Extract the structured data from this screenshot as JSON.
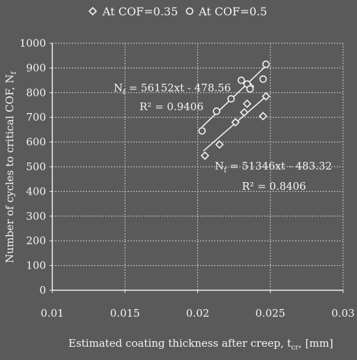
{
  "chart_data": {
    "type": "scatter",
    "xlabel": "Estimated coating thickness after creep, t",
    "xlabel_sub": "cr",
    "xlabel_unit": ", [mm]",
    "ylabel": "Number of cycles to critical COF, N",
    "ylabel_sub": "f",
    "xlim": [
      0.01,
      0.03
    ],
    "ylim": [
      0,
      1000
    ],
    "x_ticks": [
      "0.01",
      "0.015",
      "0.02",
      "0.025",
      "0.03"
    ],
    "y_ticks": [
      "0",
      "100",
      "200",
      "300",
      "400",
      "500",
      "600",
      "700",
      "800",
      "900",
      "1000"
    ],
    "grid": true,
    "legend_position": "top",
    "series": [
      {
        "name": "At COF=0.35",
        "marker": "diamond",
        "points": [
          [
            0.0205,
            545
          ],
          [
            0.0215,
            590
          ],
          [
            0.0226,
            680
          ],
          [
            0.0232,
            720
          ],
          [
            0.0234,
            755
          ],
          [
            0.0236,
            825
          ],
          [
            0.0245,
            705
          ],
          [
            0.0247,
            785
          ]
        ],
        "trendline": {
          "slope": 51346,
          "intercept": -483.32,
          "x_range": [
            0.0204,
            0.0248
          ]
        },
        "equation": "N = 51346xt - 483.32",
        "r2": "R² = 0.8406"
      },
      {
        "name": "At COF=0.5",
        "marker": "circle",
        "points": [
          [
            0.0203,
            645
          ],
          [
            0.0213,
            725
          ],
          [
            0.0223,
            775
          ],
          [
            0.023,
            850
          ],
          [
            0.0234,
            835
          ],
          [
            0.0236,
            815
          ],
          [
            0.0245,
            855
          ],
          [
            0.0247,
            915
          ]
        ],
        "trendline": {
          "slope": 56152,
          "intercept": -478.56,
          "x_range": [
            0.0203,
            0.0248
          ]
        },
        "equation": "N = 56152xt - 478.56",
        "r2": "R² = 0.9406"
      }
    ]
  }
}
